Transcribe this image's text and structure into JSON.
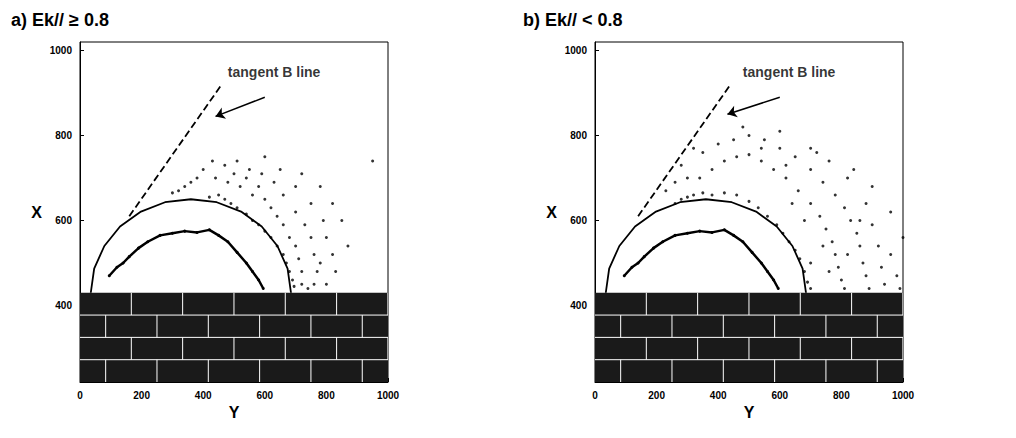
{
  "chart_data": [
    {
      "type": "scatter",
      "title": "a) Ek// ≥ 0.8",
      "x_label": "Y",
      "y_label": "X",
      "xlim": [
        0,
        1000
      ],
      "xticks": [
        0,
        200,
        400,
        600,
        800,
        1000
      ],
      "ylim": [
        220,
        1020
      ],
      "yticks": [
        400,
        600,
        800,
        1000
      ],
      "grid": false,
      "wall": {
        "top": 430
      },
      "series": [
        {
          "type": "scatter",
          "color": "#000000",
          "marker": "circle",
          "values": [
            [
              420,
              655
            ],
            [
              450,
              660
            ],
            [
              470,
              650
            ],
            [
              490,
              640
            ],
            [
              510,
              630
            ],
            [
              540,
              615
            ],
            [
              560,
              600
            ],
            [
              580,
              590
            ],
            [
              600,
              575
            ],
            [
              620,
              560
            ],
            [
              640,
              540
            ],
            [
              660,
              520
            ],
            [
              670,
              500
            ],
            [
              680,
              480
            ],
            [
              690,
              460
            ],
            [
              695,
              445
            ],
            [
              440,
              700
            ],
            [
              480,
              690
            ],
            [
              500,
              710
            ],
            [
              520,
              680
            ],
            [
              540,
              700
            ],
            [
              560,
              660
            ],
            [
              580,
              680
            ],
            [
              600,
              650
            ],
            [
              620,
              630
            ],
            [
              640,
              610
            ],
            [
              660,
              590
            ],
            [
              680,
              560
            ],
            [
              700,
              540
            ],
            [
              710,
              510
            ],
            [
              720,
              480
            ],
            [
              720,
              450
            ],
            [
              400,
              720
            ],
            [
              430,
              740
            ],
            [
              470,
              730
            ],
            [
              510,
              740
            ],
            [
              550,
              720
            ],
            [
              590,
              710
            ],
            [
              630,
              690
            ],
            [
              660,
              660
            ],
            [
              700,
              620
            ],
            [
              730,
              590
            ],
            [
              750,
              560
            ],
            [
              760,
              520
            ],
            [
              770,
              480
            ],
            [
              760,
              450
            ],
            [
              380,
              700
            ],
            [
              360,
              690
            ],
            [
              340,
              680
            ],
            [
              320,
              670
            ],
            [
              300,
              665
            ],
            [
              600,
              750
            ],
            [
              650,
              720
            ],
            [
              700,
              680
            ],
            [
              750,
              640
            ],
            [
              790,
              600
            ],
            [
              800,
              560
            ],
            [
              820,
              520
            ],
            [
              830,
              480
            ],
            [
              800,
              450
            ],
            [
              850,
              600
            ],
            [
              870,
              540
            ],
            [
              950,
              740
            ],
            [
              720,
              710
            ],
            [
              780,
              680
            ],
            [
              820,
              640
            ],
            [
              740,
              440
            ],
            [
              780,
              500
            ]
          ]
        },
        {
          "type": "line",
          "color": "#000000",
          "marker": "none",
          "line_style": "solid",
          "values": [
            [
              685,
              430
            ],
            [
              674,
              487
            ],
            [
              641,
              540
            ],
            [
              590,
              586
            ],
            [
              523,
              621
            ],
            [
              444,
              643
            ],
            [
              360,
              650
            ],
            [
              276,
              643
            ],
            [
              198,
              621
            ],
            [
              130,
              586
            ],
            [
              79,
              540
            ],
            [
              46,
              487
            ],
            [
              35,
              430
            ]
          ]
        },
        {
          "type": "line",
          "color": "#000000",
          "marker": "circle",
          "line_style": "solid",
          "values": [
            [
              95,
              470
            ],
            [
              120,
              490
            ],
            [
              140,
              500
            ],
            [
              160,
              515
            ],
            [
              190,
              535
            ],
            [
              220,
              550
            ],
            [
              260,
              565
            ],
            [
              300,
              570
            ],
            [
              340,
              575
            ],
            [
              380,
              572
            ],
            [
              420,
              578
            ],
            [
              450,
              565
            ],
            [
              480,
              550
            ],
            [
              510,
              525
            ],
            [
              540,
              500
            ],
            [
              560,
              480
            ],
            [
              580,
              460
            ],
            [
              595,
              440
            ]
          ]
        },
        {
          "type": "line",
          "color": "#000000",
          "marker": "none",
          "line_style": "dashed",
          "values": [
            [
              160,
              610
            ],
            [
              460,
              920
            ]
          ]
        }
      ],
      "annotations": [
        {
          "text": "tangent B line",
          "x": 480,
          "y": 950,
          "arrow_from": [
            600,
            890
          ],
          "arrow_to": [
            440,
            845
          ]
        }
      ]
    },
    {
      "type": "scatter",
      "title": "b) Ek// < 0.8",
      "x_label": "Y",
      "y_label": "X",
      "xlim": [
        0,
        1000
      ],
      "xticks": [
        0,
        200,
        400,
        600,
        800,
        1000
      ],
      "ylim": [
        220,
        1020
      ],
      "yticks": [
        400,
        600,
        800,
        1000
      ],
      "grid": false,
      "wall": {
        "top": 430
      },
      "series": [
        {
          "type": "scatter",
          "color": "#000000",
          "marker": "circle",
          "values": [
            [
              380,
              660
            ],
            [
              420,
              665
            ],
            [
              460,
              660
            ],
            [
              500,
              645
            ],
            [
              530,
              630
            ],
            [
              560,
              610
            ],
            [
              590,
              590
            ],
            [
              610,
              570
            ],
            [
              630,
              550
            ],
            [
              650,
              530
            ],
            [
              665,
              510
            ],
            [
              680,
              480
            ],
            [
              690,
              455
            ],
            [
              700,
              440
            ],
            [
              350,
              665
            ],
            [
              320,
              660
            ],
            [
              300,
              655
            ],
            [
              280,
              650
            ],
            [
              260,
              640
            ],
            [
              340,
              700
            ],
            [
              380,
              720
            ],
            [
              420,
              740
            ],
            [
              460,
              750
            ],
            [
              500,
              755
            ],
            [
              540,
              740
            ],
            [
              580,
              720
            ],
            [
              620,
              700
            ],
            [
              660,
              670
            ],
            [
              700,
              640
            ],
            [
              730,
              610
            ],
            [
              750,
              580
            ],
            [
              770,
              550
            ],
            [
              780,
              520
            ],
            [
              790,
              490
            ],
            [
              800,
              460
            ],
            [
              810,
              440
            ],
            [
              300,
              700
            ],
            [
              260,
              690
            ],
            [
              230,
              670
            ],
            [
              400,
              780
            ],
            [
              450,
              790
            ],
            [
              500,
              800
            ],
            [
              550,
              790
            ],
            [
              600,
              770
            ],
            [
              650,
              750
            ],
            [
              700,
              720
            ],
            [
              740,
              690
            ],
            [
              780,
              660
            ],
            [
              810,
              630
            ],
            [
              830,
              600
            ],
            [
              850,
              570
            ],
            [
              860,
              540
            ],
            [
              870,
              500
            ],
            [
              880,
              470
            ],
            [
              890,
              440
            ],
            [
              350,
              760
            ],
            [
              280,
              730
            ],
            [
              320,
              770
            ],
            [
              480,
              820
            ],
            [
              600,
              810
            ],
            [
              700,
              770
            ],
            [
              760,
              740
            ],
            [
              820,
              700
            ],
            [
              880,
              640
            ],
            [
              900,
              590
            ],
            [
              920,
              540
            ],
            [
              930,
              490
            ],
            [
              940,
              450
            ],
            [
              960,
              520
            ],
            [
              980,
              470
            ],
            [
              1000,
              560
            ],
            [
              960,
              620
            ],
            [
              900,
              680
            ],
            [
              990,
              440
            ],
            [
              840,
              720
            ],
            [
              720,
              760
            ],
            [
              620,
              730
            ],
            [
              540,
              770
            ],
            [
              680,
              600
            ],
            [
              740,
              540
            ],
            [
              820,
              520
            ],
            [
              860,
              600
            ],
            [
              640,
              640
            ],
            [
              700,
              500
            ],
            [
              760,
              480
            ]
          ]
        },
        {
          "type": "line",
          "color": "#000000",
          "marker": "none",
          "line_style": "solid",
          "values": [
            [
              685,
              430
            ],
            [
              674,
              487
            ],
            [
              641,
              540
            ],
            [
              590,
              586
            ],
            [
              523,
              621
            ],
            [
              444,
              643
            ],
            [
              360,
              650
            ],
            [
              276,
              643
            ],
            [
              198,
              621
            ],
            [
              130,
              586
            ],
            [
              79,
              540
            ],
            [
              46,
              487
            ],
            [
              35,
              430
            ]
          ]
        },
        {
          "type": "line",
          "color": "#000000",
          "marker": "circle",
          "line_style": "solid",
          "values": [
            [
              95,
              470
            ],
            [
              120,
              490
            ],
            [
              140,
              500
            ],
            [
              160,
              515
            ],
            [
              190,
              535
            ],
            [
              220,
              550
            ],
            [
              260,
              565
            ],
            [
              300,
              570
            ],
            [
              340,
              575
            ],
            [
              380,
              572
            ],
            [
              420,
              578
            ],
            [
              450,
              565
            ],
            [
              480,
              550
            ],
            [
              510,
              525
            ],
            [
              540,
              500
            ],
            [
              560,
              480
            ],
            [
              580,
              460
            ],
            [
              595,
              440
            ]
          ]
        },
        {
          "type": "line",
          "color": "#000000",
          "marker": "none",
          "line_style": "dashed",
          "values": [
            [
              140,
              610
            ],
            [
              440,
              920
            ]
          ]
        }
      ],
      "annotations": [
        {
          "text": "tangent B line",
          "x": 480,
          "y": 950,
          "arrow_from": [
            600,
            890
          ],
          "arrow_to": [
            430,
            850
          ]
        }
      ]
    }
  ]
}
